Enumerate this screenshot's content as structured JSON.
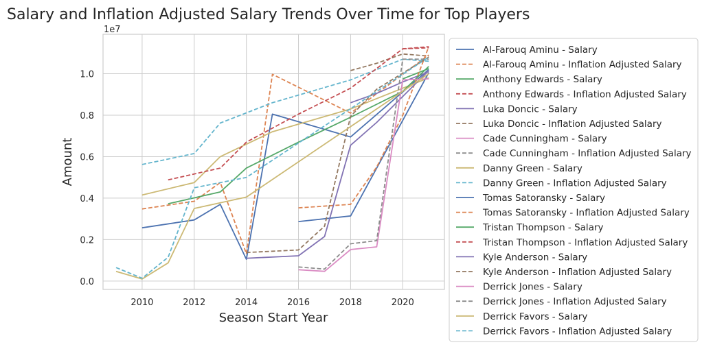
{
  "chart_data": {
    "type": "line",
    "title": "Salary and Inflation Adjusted Salary Trends Over Time for Top Players",
    "xlabel": "Season Start Year",
    "ylabel": "Amount",
    "y_offset_text": "1e7",
    "xlim": [
      2008.5,
      2021.6
    ],
    "ylim": [
      -0.4,
      11.9
    ],
    "x_ticks": [
      2010,
      2012,
      2014,
      2016,
      2018,
      2020
    ],
    "x_tick_labels": [
      "2010",
      "2012",
      "2014",
      "2016",
      "2018",
      "2020"
    ],
    "y_ticks": [
      0,
      2,
      4,
      6,
      8,
      10
    ],
    "y_tick_labels": [
      "0.0",
      "0.2",
      "0.4",
      "0.6",
      "0.8",
      "1.0"
    ],
    "grid": true,
    "legend_position": "outside right",
    "series": [
      {
        "name": "Al-Farouq Aminu - Salary",
        "color": "#4c72b0",
        "dash": "solid",
        "x": [
          2010,
          2012,
          2013,
          2014,
          2015,
          2018,
          2021
        ],
        "y": [
          2.57,
          2.95,
          3.7,
          1.05,
          8.05,
          6.95,
          10.2
        ]
      },
      {
        "name": "Al-Farouq Aminu - Inflation Adjusted Salary",
        "color": "#dd8452",
        "dash": "dashed",
        "x": [
          2010,
          2012,
          2013,
          2014,
          2015,
          2018,
          2021
        ],
        "y": [
          3.48,
          3.85,
          4.75,
          1.32,
          9.97,
          8.1,
          10.9
        ]
      },
      {
        "name": "Anthony Edwards - Salary",
        "color": "#55a868",
        "dash": "solid",
        "x": [
          2020,
          2021
        ],
        "y": [
          9.75,
          10.25
        ]
      },
      {
        "name": "Anthony Edwards - Inflation Adjusted Salary",
        "color": "#c44e52",
        "dash": "dashed",
        "x": [
          2020,
          2021
        ],
        "y": [
          11.2,
          11.25
        ]
      },
      {
        "name": "Luka Doncic - Salary",
        "color": "#8172b3",
        "dash": "solid",
        "x": [
          2018,
          2019,
          2020,
          2021
        ],
        "y": [
          8.6,
          9.05,
          9.6,
          10.1
        ]
      },
      {
        "name": "Luka Doncic - Inflation Adjusted Salary",
        "color": "#937860",
        "dash": "dashed",
        "x": [
          2018,
          2019,
          2020,
          2021
        ],
        "y": [
          10.15,
          10.5,
          10.95,
          10.85
        ]
      },
      {
        "name": "Cade Cunningham - Salary",
        "color": "#da8bc3",
        "dash": "solid",
        "x": [
          2021
        ],
        "y": [
          10.3
        ]
      },
      {
        "name": "Cade Cunningham - Inflation Adjusted Salary",
        "color": "#8c8c8c",
        "dash": "dashed",
        "x": [
          2021
        ],
        "y": [
          10.95
        ]
      },
      {
        "name": "Danny Green - Salary",
        "color": "#ccb974",
        "dash": "solid",
        "x": [
          2010,
          2012,
          2013,
          2015,
          2018,
          2021
        ],
        "y": [
          4.15,
          4.75,
          6.0,
          7.2,
          8.3,
          9.8
        ]
      },
      {
        "name": "Danny Green - Inflation Adjusted Salary",
        "color": "#64b5cd",
        "dash": "dashed",
        "x": [
          2010,
          2012,
          2013,
          2015,
          2018,
          2020,
          2021
        ],
        "y": [
          5.62,
          6.15,
          7.62,
          8.6,
          9.7,
          10.7,
          10.6
        ]
      },
      {
        "name": "Tomas Satoransky - Salary",
        "color": "#4c72b0",
        "dash": "solid",
        "x": [
          2016,
          2018,
          2021
        ],
        "y": [
          2.87,
          3.14,
          10.05
        ]
      },
      {
        "name": "Tomas Satoransky - Inflation Adjusted Salary",
        "color": "#dd8452",
        "dash": "dashed",
        "x": [
          2016,
          2018,
          2019,
          2020,
          2021
        ],
        "y": [
          3.53,
          3.7,
          5.5,
          8.0,
          11.3
        ]
      },
      {
        "name": "Tristan Thompson - Salary",
        "color": "#55a868",
        "dash": "solid",
        "x": [
          2011,
          2013,
          2014,
          2016,
          2018,
          2020,
          2021
        ],
        "y": [
          3.73,
          4.3,
          5.45,
          6.7,
          7.9,
          9.15,
          10.35
        ]
      },
      {
        "name": "Tristan Thompson - Inflation Adjusted Salary",
        "color": "#c44e52",
        "dash": "dashed",
        "x": [
          2011,
          2013,
          2014,
          2016,
          2018,
          2020,
          2021
        ],
        "y": [
          4.88,
          5.45,
          6.7,
          8.05,
          9.3,
          11.2,
          11.3
        ]
      },
      {
        "name": "Kyle Anderson - Salary",
        "color": "#8172b3",
        "dash": "solid",
        "x": [
          2014,
          2016,
          2017,
          2018,
          2019,
          2021
        ],
        "y": [
          1.1,
          1.22,
          2.15,
          6.55,
          7.65,
          10.15
        ]
      },
      {
        "name": "Kyle Anderson - Inflation Adjusted Salary",
        "color": "#937860",
        "dash": "dashed",
        "x": [
          2014,
          2016,
          2017,
          2018,
          2019,
          2021
        ],
        "y": [
          1.38,
          1.5,
          2.65,
          7.95,
          9.25,
          10.8
        ]
      },
      {
        "name": "Derrick Jones - Salary",
        "color": "#da8bc3",
        "dash": "solid",
        "x": [
          2016,
          2017,
          2018,
          2019,
          2020,
          2021
        ],
        "y": [
          0.55,
          0.47,
          1.52,
          1.65,
          9.7,
          9.75
        ]
      },
      {
        "name": "Derrick Jones - Inflation Adjusted Salary",
        "color": "#8c8c8c",
        "dash": "dashed",
        "x": [
          2016,
          2017,
          2018,
          2019,
          2020,
          2021
        ],
        "y": [
          0.68,
          0.58,
          1.8,
          1.95,
          10.7,
          10.7
        ]
      },
      {
        "name": "Derrick Favors - Salary",
        "color": "#ccb974",
        "dash": "solid",
        "x": [
          2009,
          2010,
          2011,
          2012,
          2014,
          2021
        ],
        "y": [
          0.47,
          0.1,
          0.88,
          3.5,
          4.05,
          10.0
        ]
      },
      {
        "name": "Derrick Favors - Inflation Adjusted Salary",
        "color": "#64b5cd",
        "dash": "dashed",
        "x": [
          2009,
          2010,
          2011,
          2012,
          2014,
          2021
        ],
        "y": [
          0.65,
          0.14,
          1.15,
          4.5,
          5.0,
          10.8
        ]
      }
    ]
  }
}
